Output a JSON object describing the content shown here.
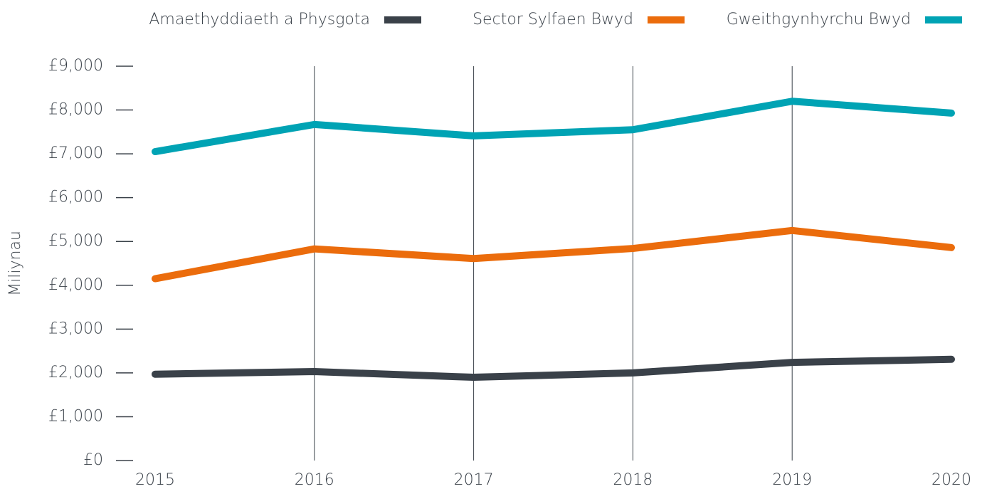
{
  "chart_data": {
    "type": "line",
    "y_label": "Miliynau",
    "categories": [
      "2015",
      "2016",
      "2017",
      "2018",
      "2019",
      "2020"
    ],
    "series": [
      {
        "name": "Amaethyddiaeth a Physgota",
        "color": "#3a4149",
        "values": [
          1970,
          2030,
          1900,
          2000,
          2240,
          2310
        ]
      },
      {
        "name": "Sector Sylfaen Bwyd",
        "color": "#eb6c0c",
        "values": [
          4150,
          4830,
          4610,
          4840,
          5250,
          4860
        ]
      },
      {
        "name": "Gweithgynhyrchu Bwyd",
        "color": "#00a3b4",
        "values": [
          7050,
          7670,
          7410,
          7550,
          8200,
          7930
        ]
      }
    ],
    "ylim": [
      0,
      9000
    ],
    "yticks": [
      {
        "value": 0,
        "label": "£0"
      },
      {
        "value": 1000,
        "label": "£1,000"
      },
      {
        "value": 2000,
        "label": "£2,000"
      },
      {
        "value": 3000,
        "label": "£3,000"
      },
      {
        "value": 4000,
        "label": "£4,000"
      },
      {
        "value": 5000,
        "label": "£5,000"
      },
      {
        "value": 6000,
        "label": "£6,000"
      },
      {
        "value": 7000,
        "label": "£7,000"
      },
      {
        "value": 8000,
        "label": "£8,000"
      },
      {
        "value": 9000,
        "label": "£9,000"
      }
    ],
    "xgrid": true,
    "legend": "top"
  }
}
